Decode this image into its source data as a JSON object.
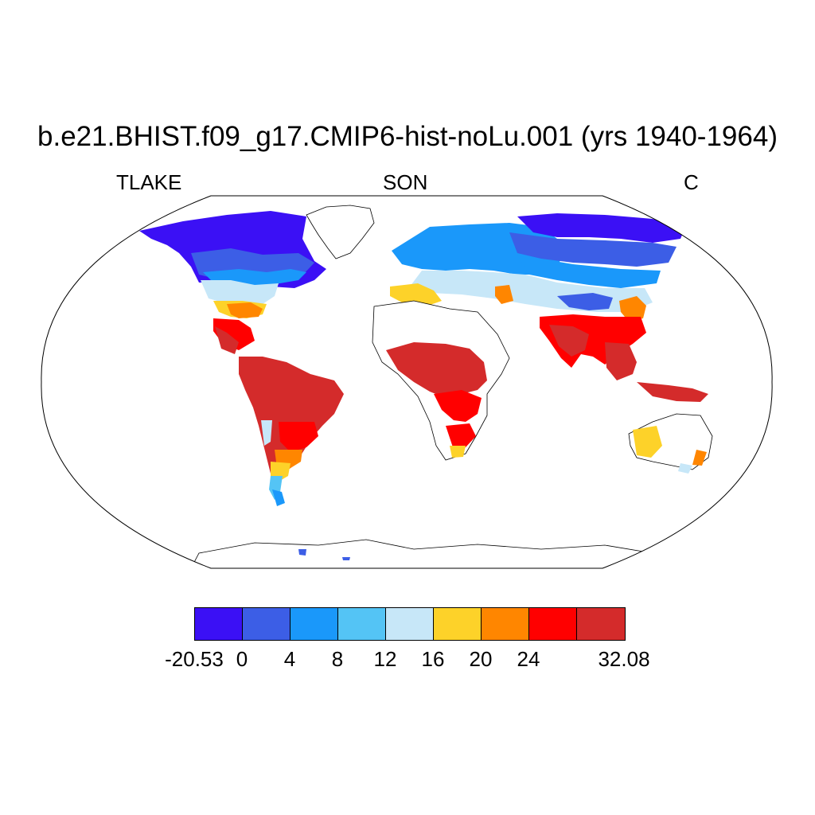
{
  "title": "b.e21.BHIST.f09_g17.CMIP6-hist-noLu.001 (yrs 1940-1964)",
  "variable": "TLAKE",
  "season": "SON",
  "units": "C",
  "colorbar": {
    "colors": [
      "#3b10f5",
      "#3c5ee6",
      "#1a98fa",
      "#54c4f5",
      "#c7e7f8",
      "#fdd229",
      "#ff8600",
      "#ff0000",
      "#d42b2b"
    ],
    "labels": [
      "-20.53",
      "0",
      "4",
      "8",
      "12",
      "16",
      "20",
      "24",
      "32.08"
    ]
  },
  "map": {
    "projection": "robinson",
    "background": "#ffffff",
    "coastline_color": "#000000"
  }
}
